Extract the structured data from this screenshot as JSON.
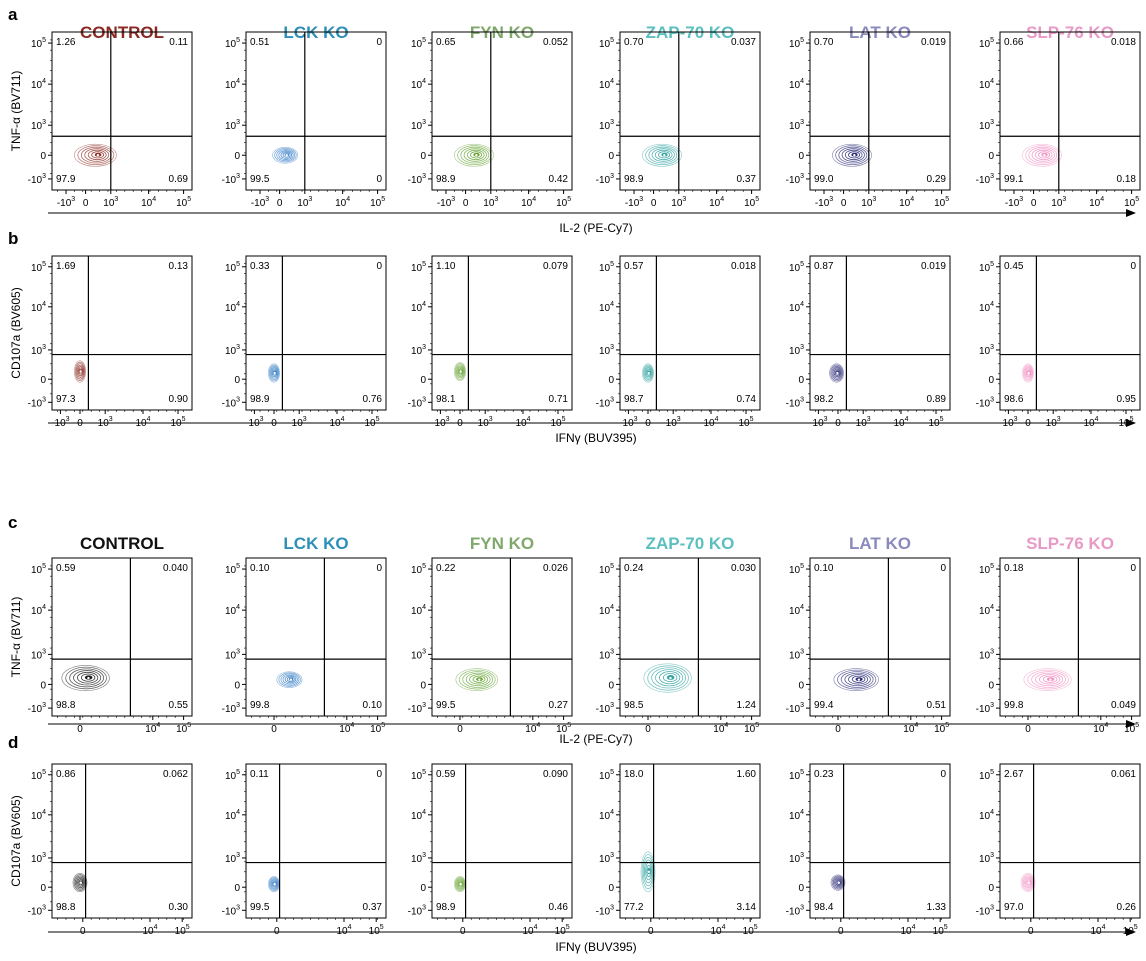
{
  "chart_data": {
    "type": "contour",
    "panels": [
      {
        "letter": "a",
        "y_label": "TNF-α (BV711)",
        "x_label": "IL-2 (PE-Cy7)",
        "x_ticks": [
          "-10",
          "0",
          "10",
          "10",
          "10"
        ],
        "x_exps": [
          "3",
          "",
          "3",
          "4",
          "5"
        ],
        "y_ticks": [
          "10",
          "10",
          "10",
          "0",
          "-10"
        ],
        "y_exps": [
          "5",
          "4",
          "3",
          "",
          "3"
        ],
        "x_tick_frac": [
          0.1,
          0.24,
          0.42,
          0.69,
          0.94
        ],
        "y_tick_frac": [
          0.07,
          0.33,
          0.59,
          0.78,
          0.93
        ],
        "gate_x_frac": 0.42,
        "gate_y_frac": 0.66,
        "plots": [
          {
            "condition": "CONTROL",
            "color": "#8B2A22",
            "q_ul": "1.26",
            "q_ur": "0.11",
            "q_ll": "97.9",
            "q_lr": "0.69",
            "blob": [
              0.31,
              0.78,
              0.15,
              0.07
            ]
          },
          {
            "condition": "LCK KO",
            "color": "#2E78C2",
            "q_ul": "0.51",
            "q_ur": "0",
            "q_ll": "99.5",
            "q_lr": "0",
            "blob": [
              0.28,
              0.78,
              0.09,
              0.05
            ]
          },
          {
            "condition": "FYN KO",
            "color": "#5D9E2A",
            "q_ul": "0.65",
            "q_ur": "0.052",
            "q_ll": "98.9",
            "q_lr": "0.42",
            "blob": [
              0.3,
              0.78,
              0.14,
              0.07
            ]
          },
          {
            "condition": "ZAP-70 KO",
            "color": "#2A9E9E",
            "q_ul": "0.70",
            "q_ur": "0.037",
            "q_ll": "98.9",
            "q_lr": "0.37",
            "blob": [
              0.3,
              0.78,
              0.14,
              0.07
            ]
          },
          {
            "condition": "LAT KO",
            "color": "#1E1E6E",
            "q_ul": "0.70",
            "q_ur": "0.019",
            "q_ll": "99.0",
            "q_lr": "0.29",
            "blob": [
              0.3,
              0.78,
              0.14,
              0.07
            ]
          },
          {
            "condition": "SLP-76 KO",
            "color": "#F08AC0",
            "q_ul": "0.66",
            "q_ur": "0.018",
            "q_ll": "99.1",
            "q_lr": "0.18",
            "blob": [
              0.3,
              0.78,
              0.14,
              0.07
            ]
          }
        ]
      },
      {
        "letter": "b",
        "y_label": "CD107a (BV605)",
        "x_label": "IFNγ (BUV395)",
        "x_ticks": [
          "-10",
          "0",
          "10",
          "10",
          "10"
        ],
        "x_exps": [
          "3",
          "",
          "3",
          "4",
          "5"
        ],
        "y_ticks": [
          "10",
          "10",
          "10",
          "0",
          "-10"
        ],
        "y_exps": [
          "5",
          "4",
          "3",
          "",
          "3"
        ],
        "x_tick_frac": [
          0.06,
          0.2,
          0.38,
          0.65,
          0.9
        ],
        "y_tick_frac": [
          0.07,
          0.33,
          0.61,
          0.8,
          0.95
        ],
        "gate_x_frac": 0.26,
        "gate_y_frac": 0.64,
        "plots": [
          {
            "condition": "CONTROL",
            "color": "#8B2A22",
            "q_ul": "1.69",
            "q_ur": "0.13",
            "q_ll": "97.3",
            "q_lr": "0.90",
            "blob": [
              0.2,
              0.75,
              0.04,
              0.07
            ]
          },
          {
            "condition": "LCK KO",
            "color": "#2E78C2",
            "q_ul": "0.33",
            "q_ur": "0",
            "q_ll": "98.9",
            "q_lr": "0.76",
            "blob": [
              0.2,
              0.76,
              0.04,
              0.06
            ]
          },
          {
            "condition": "FYN KO",
            "color": "#5D9E2A",
            "q_ul": "1.10",
            "q_ur": "0.079",
            "q_ll": "98.1",
            "q_lr": "0.71",
            "blob": [
              0.2,
              0.75,
              0.04,
              0.06
            ]
          },
          {
            "condition": "ZAP-70 KO",
            "color": "#2A9E9E",
            "q_ul": "0.57",
            "q_ur": "0.018",
            "q_ll": "98.7",
            "q_lr": "0.74",
            "blob": [
              0.2,
              0.76,
              0.04,
              0.06
            ]
          },
          {
            "condition": "LAT KO",
            "color": "#1E1E6E",
            "q_ul": "0.87",
            "q_ur": "0.019",
            "q_ll": "98.2",
            "q_lr": "0.89",
            "blob": [
              0.19,
              0.76,
              0.05,
              0.06
            ]
          },
          {
            "condition": "SLP-76 KO",
            "color": "#F08AC0",
            "q_ul": "0.45",
            "q_ur": "0",
            "q_ll": "98.6",
            "q_lr": "0.95",
            "blob": [
              0.2,
              0.76,
              0.04,
              0.06
            ]
          }
        ]
      },
      {
        "letter": "c",
        "y_label": "TNF-α (BV711)",
        "x_label": "IL-2 (PE-Cy7)",
        "x_ticks": [
          "0",
          "10",
          "10"
        ],
        "x_exps": [
          "",
          "4",
          "5"
        ],
        "x_tick_frac": [
          0.2,
          0.72,
          0.94
        ],
        "y_ticks": [
          "10",
          "10",
          "10",
          "0",
          "-10"
        ],
        "y_exps": [
          "5",
          "4",
          "3",
          "",
          "3"
        ],
        "y_tick_frac": [
          0.07,
          0.33,
          0.61,
          0.8,
          0.95
        ],
        "gate_x_frac": 0.56,
        "gate_y_frac": 0.64,
        "plots": [
          {
            "condition": "CONTROL",
            "color": "#111111",
            "q_ul": "0.59",
            "q_ur": "0.040",
            "q_ll": "98.8",
            "q_lr": "0.55",
            "blob": [
              0.24,
              0.76,
              0.17,
              0.08
            ]
          },
          {
            "condition": "LCK KO",
            "color": "#2E78C2",
            "q_ul": "0.10",
            "q_ur": "0",
            "q_ll": "99.8",
            "q_lr": "0.10",
            "blob": [
              0.31,
              0.77,
              0.09,
              0.05
            ]
          },
          {
            "condition": "FYN KO",
            "color": "#5D9E2A",
            "q_ul": "0.22",
            "q_ur": "0.026",
            "q_ll": "99.5",
            "q_lr": "0.27",
            "blob": [
              0.32,
              0.77,
              0.15,
              0.07
            ]
          },
          {
            "condition": "ZAP-70 KO",
            "color": "#2A9E9E",
            "q_ul": "0.24",
            "q_ur": "0.030",
            "q_ll": "98.5",
            "q_lr": "1.24",
            "blob": [
              0.34,
              0.76,
              0.17,
              0.09
            ]
          },
          {
            "condition": "LAT KO",
            "color": "#1E1E6E",
            "q_ul": "0.10",
            "q_ur": "0",
            "q_ll": "99.4",
            "q_lr": "0.51",
            "blob": [
              0.33,
              0.77,
              0.16,
              0.07
            ]
          },
          {
            "condition": "SLP-76 KO",
            "color": "#F08AC0",
            "q_ul": "0.18",
            "q_ur": "0",
            "q_ll": "99.8",
            "q_lr": "0.049",
            "blob": [
              0.34,
              0.77,
              0.17,
              0.07
            ]
          }
        ]
      },
      {
        "letter": "d",
        "y_label": "CD107a (BV605)",
        "x_label": "IFNγ (BUV395)",
        "x_ticks": [
          "0",
          "10",
          "10"
        ],
        "x_exps": [
          "",
          "4",
          "5"
        ],
        "x_tick_frac": [
          0.22,
          0.7,
          0.93
        ],
        "y_ticks": [
          "10",
          "10",
          "10",
          "0",
          "-10"
        ],
        "y_exps": [
          "5",
          "4",
          "3",
          "",
          "3"
        ],
        "y_tick_frac": [
          0.07,
          0.33,
          0.61,
          0.8,
          0.95
        ],
        "gate_x_frac": 0.24,
        "gate_y_frac": 0.64,
        "plots": [
          {
            "condition": "CONTROL",
            "color": "#111111",
            "q_ul": "0.86",
            "q_ur": "0.062",
            "q_ll": "98.8",
            "q_lr": "0.30",
            "blob": [
              0.2,
              0.77,
              0.05,
              0.06
            ]
          },
          {
            "condition": "LCK KO",
            "color": "#2E78C2",
            "q_ul": "0.11",
            "q_ur": "0",
            "q_ll": "99.5",
            "q_lr": "0.37",
            "blob": [
              0.2,
              0.78,
              0.04,
              0.05
            ]
          },
          {
            "condition": "FYN KO",
            "color": "#5D9E2A",
            "q_ul": "0.59",
            "q_ur": "0.090",
            "q_ll": "98.9",
            "q_lr": "0.46",
            "blob": [
              0.2,
              0.78,
              0.04,
              0.05
            ]
          },
          {
            "condition": "ZAP-70 KO",
            "color": "#2A9E9E",
            "q_ul": "18.0",
            "q_ur": "1.60",
            "q_ll": "77.2",
            "q_lr": "3.14",
            "blob": [
              0.2,
              0.7,
              0.05,
              0.13
            ]
          },
          {
            "condition": "LAT KO",
            "color": "#1E1E6E",
            "q_ul": "0.23",
            "q_ur": "0",
            "q_ll": "98.4",
            "q_lr": "1.33",
            "blob": [
              0.2,
              0.77,
              0.05,
              0.05
            ]
          },
          {
            "condition": "SLP-76 KO",
            "color": "#F08AC0",
            "q_ul": "2.67",
            "q_ur": "0.061",
            "q_ll": "97.0",
            "q_lr": "0.26",
            "blob": [
              0.2,
              0.77,
              0.05,
              0.06
            ]
          }
        ]
      }
    ],
    "title_colors": {
      "a": [
        "#8B2A22",
        "#2E8FB8",
        "#7FA86A",
        "#5BBFBF",
        "#8A8ABF",
        "#E89AC6"
      ],
      "c": [
        "#111111",
        "#2E8FB8",
        "#7FA86A",
        "#5BBFBF",
        "#8A8ABF",
        "#E89AC6"
      ]
    }
  }
}
